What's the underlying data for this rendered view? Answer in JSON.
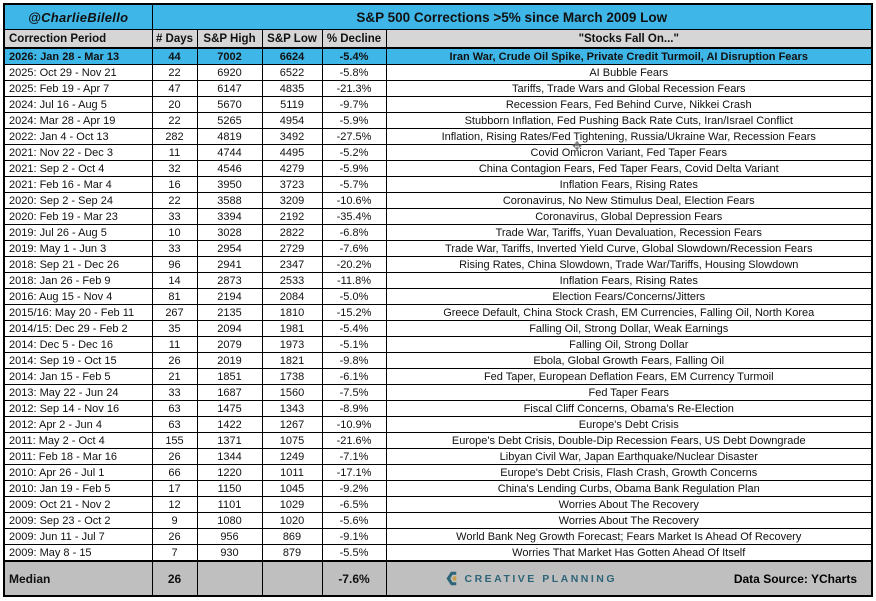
{
  "colors": {
    "accent_blue": "#3eb6e8",
    "header_gray": "#d6d6d6",
    "median_gray": "#bfbfbf",
    "logo_teal": "#2d6478",
    "logo_gold": "#c9a04a"
  },
  "banner": {
    "handle": "@CharlieBilello",
    "title": "S&P 500 Corrections >5% since March 2009 Low"
  },
  "chart_data": {
    "type": "table",
    "title": "S&P 500 Corrections >5% since March 2009 Low",
    "columns": [
      "Correction Period",
      "# Days",
      "S&P High",
      "S&P Low",
      "% Decline",
      "\"Stocks Fall On...\""
    ],
    "highlighted_row": 0,
    "rows": [
      {
        "period": "2026: Jan 28 - Mar 13",
        "days": "44",
        "high": "7002",
        "low": "6624",
        "decline": "-5.4%",
        "reason": "Iran War, Crude Oil Spike, Private Credit Turmoil, AI Disruption Fears"
      },
      {
        "period": "2025: Oct 29 - Nov 21",
        "days": "22",
        "high": "6920",
        "low": "6522",
        "decline": "-5.8%",
        "reason": "AI Bubble Fears"
      },
      {
        "period": "2025: Feb 19 - Apr 7",
        "days": "47",
        "high": "6147",
        "low": "4835",
        "decline": "-21.3%",
        "reason": "Tariffs, Trade Wars and Global Recession Fears"
      },
      {
        "period": "2024: Jul 16 - Aug 5",
        "days": "20",
        "high": "5670",
        "low": "5119",
        "decline": "-9.7%",
        "reason": "Recession Fears, Fed Behind Curve, Nikkei Crash"
      },
      {
        "period": "2024: Mar 28 - Apr 19",
        "days": "22",
        "high": "5265",
        "low": "4954",
        "decline": "-5.9%",
        "reason": "Stubborn Inflation, Fed Pushing Back Rate Cuts, Iran/Israel Conflict"
      },
      {
        "period": "2022: Jan 4 - Oct 13",
        "days": "282",
        "high": "4819",
        "low": "3492",
        "decline": "-27.5%",
        "reason": "Inflation, Rising Rates/Fed Tightening, Russia/Ukraine War, Recession Fears"
      },
      {
        "period": "2021: Nov 22 - Dec 3",
        "days": "11",
        "high": "4744",
        "low": "4495",
        "decline": "-5.2%",
        "reason": "Covid Omicron Variant, Fed Taper Fears"
      },
      {
        "period": "2021: Sep 2 - Oct 4",
        "days": "32",
        "high": "4546",
        "low": "4279",
        "decline": "-5.9%",
        "reason": "China Contagion Fears, Fed Taper Fears, Covid Delta Variant"
      },
      {
        "period": "2021: Feb 16 - Mar 4",
        "days": "16",
        "high": "3950",
        "low": "3723",
        "decline": "-5.7%",
        "reason": "Inflation Fears, Rising Rates"
      },
      {
        "period": "2020: Sep 2 - Sep 24",
        "days": "22",
        "high": "3588",
        "low": "3209",
        "decline": "-10.6%",
        "reason": "Coronavirus, No New Stimulus Deal, Election Fears"
      },
      {
        "period": "2020: Feb 19 - Mar 23",
        "days": "33",
        "high": "3394",
        "low": "2192",
        "decline": "-35.4%",
        "reason": "Coronavirus, Global Depression Fears"
      },
      {
        "period": "2019: Jul 26 - Aug 5",
        "days": "10",
        "high": "3028",
        "low": "2822",
        "decline": "-6.8%",
        "reason": "Trade War, Tariffs, Yuan Devaluation, Recession Fears"
      },
      {
        "period": "2019: May 1 - Jun 3",
        "days": "33",
        "high": "2954",
        "low": "2729",
        "decline": "-7.6%",
        "reason": "Trade War, Tariffs, Inverted Yield Curve, Global Slowdown/Recession Fears"
      },
      {
        "period": "2018: Sep 21 - Dec 26",
        "days": "96",
        "high": "2941",
        "low": "2347",
        "decline": "-20.2%",
        "reason": "Rising Rates, China Slowdown, Trade War/Tariffs, Housing Slowdown"
      },
      {
        "period": "2018: Jan 26 - Feb 9",
        "days": "14",
        "high": "2873",
        "low": "2533",
        "decline": "-11.8%",
        "reason": "Inflation Fears, Rising Rates"
      },
      {
        "period": "2016: Aug 15 - Nov 4",
        "days": "81",
        "high": "2194",
        "low": "2084",
        "decline": "-5.0%",
        "reason": "Election Fears/Concerns/Jitters"
      },
      {
        "period": "2015/16: May 20 - Feb 11",
        "days": "267",
        "high": "2135",
        "low": "1810",
        "decline": "-15.2%",
        "reason": "Greece Default, China Stock Crash, EM Currencies, Falling Oil, North Korea"
      },
      {
        "period": "2014/15: Dec 29 - Feb 2",
        "days": "35",
        "high": "2094",
        "low": "1981",
        "decline": "-5.4%",
        "reason": "Falling Oil, Strong Dollar, Weak Earnings"
      },
      {
        "period": "2014: Dec 5 - Dec 16",
        "days": "11",
        "high": "2079",
        "low": "1973",
        "decline": "-5.1%",
        "reason": "Falling Oil, Strong Dollar"
      },
      {
        "period": "2014: Sep 19 - Oct 15",
        "days": "26",
        "high": "2019",
        "low": "1821",
        "decline": "-9.8%",
        "reason": "Ebola, Global Growth Fears, Falling Oil"
      },
      {
        "period": "2014: Jan 15 - Feb 5",
        "days": "21",
        "high": "1851",
        "low": "1738",
        "decline": "-6.1%",
        "reason": "Fed Taper, European Deflation Fears, EM Currency Turmoil"
      },
      {
        "period": "2013: May 22 - Jun 24",
        "days": "33",
        "high": "1687",
        "low": "1560",
        "decline": "-7.5%",
        "reason": "Fed Taper Fears"
      },
      {
        "period": "2012: Sep 14 - Nov 16",
        "days": "63",
        "high": "1475",
        "low": "1343",
        "decline": "-8.9%",
        "reason": "Fiscal Cliff Concerns, Obama's Re-Election"
      },
      {
        "period": "2012: Apr 2 - Jun 4",
        "days": "63",
        "high": "1422",
        "low": "1267",
        "decline": "-10.9%",
        "reason": "Europe's Debt Crisis"
      },
      {
        "period": "2011: May 2 - Oct 4",
        "days": "155",
        "high": "1371",
        "low": "1075",
        "decline": "-21.6%",
        "reason": "Europe's Debt Crisis, Double-Dip Recession Fears, US Debt Downgrade"
      },
      {
        "period": "2011: Feb 18 - Mar 16",
        "days": "26",
        "high": "1344",
        "low": "1249",
        "decline": "-7.1%",
        "reason": "Libyan Civil War, Japan Earthquake/Nuclear Disaster"
      },
      {
        "period": "2010: Apr 26 - Jul 1",
        "days": "66",
        "high": "1220",
        "low": "1011",
        "decline": "-17.1%",
        "reason": "Europe's Debt Crisis, Flash Crash, Growth Concerns"
      },
      {
        "period": "2010: Jan 19 - Feb 5",
        "days": "17",
        "high": "1150",
        "low": "1045",
        "decline": "-9.2%",
        "reason": "China's Lending Curbs, Obama Bank Regulation Plan"
      },
      {
        "period": "2009: Oct 21 - Nov 2",
        "days": "12",
        "high": "1101",
        "low": "1029",
        "decline": "-6.5%",
        "reason": "Worries About The Recovery"
      },
      {
        "period": "2009: Sep 23 - Oct 2",
        "days": "9",
        "high": "1080",
        "low": "1020",
        "decline": "-5.6%",
        "reason": "Worries About The Recovery"
      },
      {
        "period": "2009: Jun 11 - Jul 7",
        "days": "26",
        "high": "956",
        "low": "869",
        "decline": "-9.1%",
        "reason": "World Bank Neg Growth Forecast; Fears Market Is Ahead Of Recovery"
      },
      {
        "period": "2009: May 8 - 15",
        "days": "7",
        "high": "930",
        "low": "879",
        "decline": "-5.5%",
        "reason": "Worries That Market Has Gotten Ahead Of Itself"
      }
    ],
    "median": {
      "label": "Median",
      "days": "26",
      "decline": "-7.6%"
    }
  },
  "footer": {
    "logo_text": "CREATIVE PLANNING",
    "source": "Data Source: YCharts"
  },
  "cursor": {
    "glyph": "✥"
  }
}
